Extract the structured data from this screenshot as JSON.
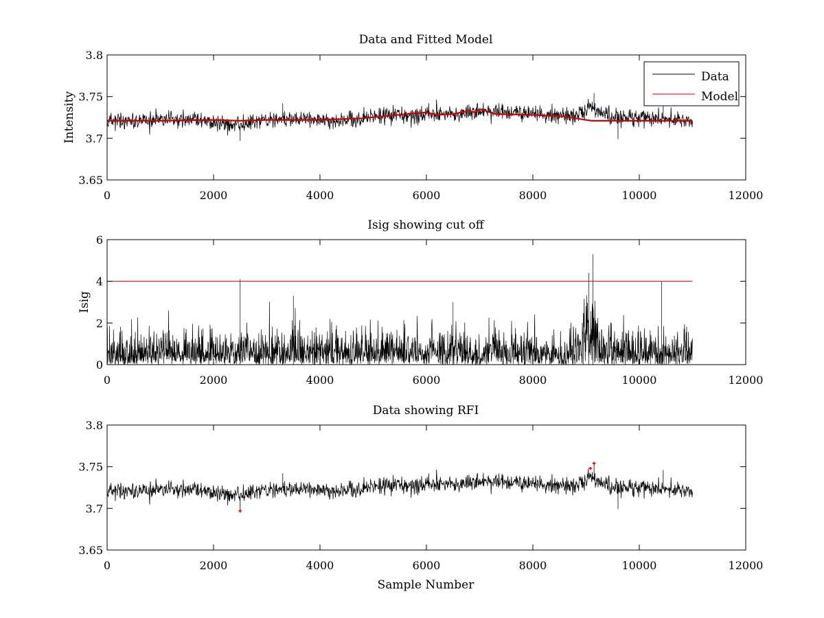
{
  "colors": {
    "data": "#000000",
    "model": "#cc0000",
    "rfi": "#dd0000",
    "axis": "#000000"
  },
  "chart_data": [
    {
      "type": "line",
      "title": "Data and Fitted Model",
      "xlabel": "",
      "ylabel": "Intensity",
      "xlim": [
        0,
        12000
      ],
      "ylim": [
        3.65,
        3.8
      ],
      "xticks": [
        0,
        2000,
        4000,
        6000,
        8000,
        10000,
        12000
      ],
      "yticks": [
        3.65,
        3.7,
        3.75,
        3.8
      ],
      "xtick_labels": [
        "0",
        "2000",
        "4000",
        "6000",
        "8000",
        "10000",
        "12000"
      ],
      "ytick_labels": [
        "3.65",
        "3.7",
        "3.75",
        "3.8"
      ],
      "grid": false,
      "legend": {
        "position": "top-right",
        "entries": [
          "Data",
          "Model"
        ]
      },
      "series": [
        {
          "name": "Data",
          "kind": "noisy",
          "x_range": [
            0,
            11000
          ],
          "points": 1500,
          "noise_amplitude": 0.011,
          "baseline": [
            [
              0,
              3.721
            ],
            [
              1500,
              3.723
            ],
            [
              2500,
              3.716
            ],
            [
              3300,
              3.725
            ],
            [
              4000,
              3.722
            ],
            [
              4500,
              3.721
            ],
            [
              5000,
              3.726
            ],
            [
              6000,
              3.729
            ],
            [
              6500,
              3.728
            ],
            [
              7000,
              3.733
            ],
            [
              8000,
              3.729
            ],
            [
              8800,
              3.727
            ],
            [
              9100,
              3.738
            ],
            [
              9400,
              3.726
            ],
            [
              10000,
              3.724
            ],
            [
              11000,
              3.721
            ]
          ],
          "spikes": [
            [
              2500,
              3.697
            ],
            [
              3300,
              3.742
            ],
            [
              9150,
              3.754
            ],
            [
              9600,
              3.699
            ],
            [
              10450,
              3.746
            ]
          ]
        },
        {
          "name": "Model",
          "kind": "line",
          "x": [
            0,
            1000,
            2000,
            2500,
            3000,
            4000,
            4800,
            5300,
            5800,
            6000,
            6200,
            6500,
            6800,
            6900,
            7000,
            7100,
            7300,
            8000,
            8600,
            8900,
            9100,
            11000
          ],
          "y": [
            3.721,
            3.721,
            3.722,
            3.721,
            3.722,
            3.722,
            3.724,
            3.727,
            3.73,
            3.731,
            3.728,
            3.729,
            3.733,
            3.731,
            3.735,
            3.733,
            3.729,
            3.728,
            3.726,
            3.723,
            3.721,
            3.721
          ]
        }
      ]
    },
    {
      "type": "line",
      "title": "Isig showing cut off",
      "xlabel": "",
      "ylabel": "Isig",
      "xlim": [
        0,
        12000
      ],
      "ylim": [
        0,
        6
      ],
      "xticks": [
        0,
        2000,
        4000,
        6000,
        8000,
        10000,
        12000
      ],
      "yticks": [
        0,
        2,
        4,
        6
      ],
      "xtick_labels": [
        "0",
        "2000",
        "4000",
        "6000",
        "8000",
        "10000",
        "12000"
      ],
      "ytick_labels": [
        "0",
        "2",
        "4",
        "6"
      ],
      "grid": false,
      "series": [
        {
          "name": "Isig",
          "kind": "abs-noise",
          "x_range": [
            0,
            11000
          ],
          "points": 2200,
          "scale": 0.8,
          "bursts": [
            [
              8800,
              9400,
              2.2
            ]
          ],
          "spikes": [
            [
              2500,
              4.1
            ],
            [
              9130,
              5.3
            ],
            [
              9050,
              4.4
            ],
            [
              10420,
              4.0
            ],
            [
              3500,
              3.3
            ],
            [
              6500,
              3.0
            ]
          ]
        },
        {
          "name": "Cut off",
          "kind": "line",
          "x": [
            0,
            11000
          ],
          "y": [
            4,
            4
          ]
        }
      ]
    },
    {
      "type": "line",
      "title": "Data showing RFI",
      "xlabel": "Sample Number",
      "ylabel": "",
      "xlim": [
        0,
        12000
      ],
      "ylim": [
        3.65,
        3.8
      ],
      "xticks": [
        0,
        2000,
        4000,
        6000,
        8000,
        10000,
        12000
      ],
      "yticks": [
        3.65,
        3.7,
        3.75,
        3.8
      ],
      "xtick_labels": [
        "0",
        "2000",
        "4000",
        "6000",
        "8000",
        "10000",
        "12000"
      ],
      "ytick_labels": [
        "3.65",
        "3.7",
        "3.75",
        "3.8"
      ],
      "grid": false,
      "series": [
        {
          "name": "Data",
          "kind": "noisy",
          "x_range": [
            0,
            11000
          ],
          "points": 1500,
          "noise_amplitude": 0.011,
          "baseline": [
            [
              0,
              3.721
            ],
            [
              1500,
              3.723
            ],
            [
              2500,
              3.716
            ],
            [
              3300,
              3.725
            ],
            [
              4000,
              3.722
            ],
            [
              4500,
              3.721
            ],
            [
              5000,
              3.726
            ],
            [
              6000,
              3.729
            ],
            [
              6500,
              3.728
            ],
            [
              7000,
              3.733
            ],
            [
              8000,
              3.729
            ],
            [
              8800,
              3.727
            ],
            [
              9100,
              3.738
            ],
            [
              9400,
              3.726
            ],
            [
              10000,
              3.724
            ],
            [
              11000,
              3.721
            ]
          ],
          "spikes": [
            [
              2500,
              3.697
            ],
            [
              3300,
              3.742
            ],
            [
              9150,
              3.754
            ],
            [
              9600,
              3.699
            ],
            [
              10450,
              3.746
            ]
          ]
        },
        {
          "name": "RFI",
          "kind": "scatter",
          "x": [
            2500,
            9080,
            9150
          ],
          "y": [
            3.697,
            3.748,
            3.754
          ]
        }
      ]
    }
  ]
}
